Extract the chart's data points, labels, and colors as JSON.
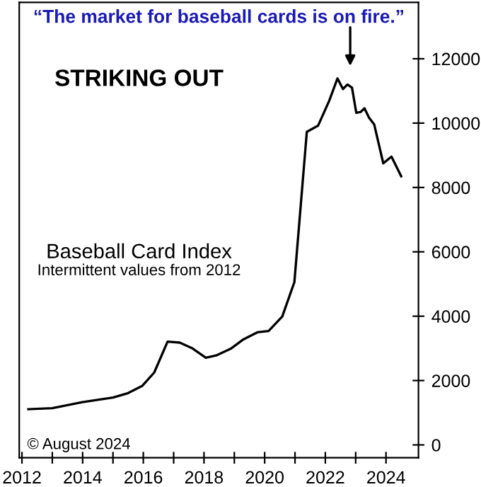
{
  "chart_data": {
    "type": "line",
    "title": "“The market for baseball cards is on fire.”",
    "subtitle": "STRIKING OUT",
    "annotations": [
      "Baseball Card Index",
      "Intermittent values from 2012",
      "© August 2024"
    ],
    "x": [
      2012.21,
      2013.0,
      2013.99,
      2015.0,
      2015.5,
      2015.96,
      2016.36,
      2016.8,
      2017.2,
      2017.6,
      2018.06,
      2018.4,
      2018.9,
      2019.3,
      2019.76,
      2020.13,
      2020.58,
      2020.98,
      2021.39,
      2021.76,
      2022.13,
      2022.4,
      2022.58,
      2022.73,
      2022.88,
      2023.02,
      2023.17,
      2023.29,
      2023.44,
      2023.61,
      2023.91,
      2024.18,
      2024.5
    ],
    "series": [
      {
        "color": "#000000",
        "values": [
          1110,
          1140,
          1330,
          1470,
          1610,
          1830,
          2250,
          3210,
          3180,
          3010,
          2710,
          2780,
          3000,
          3280,
          3500,
          3540,
          3990,
          5060,
          9730,
          9920,
          10700,
          11390,
          11060,
          11200,
          11100,
          10320,
          10350,
          10460,
          10170,
          9960,
          8750,
          8960,
          8350
        ]
      }
    ],
    "xlim": [
      2011.91,
      2025.07
    ],
    "ylim": [
      -400,
      13750
    ],
    "xticks": [
      2012,
      {
        "value": 2013,
        "label": null
      },
      2014,
      {
        "value": 2015,
        "label": null
      },
      2016,
      {
        "value": 2017,
        "label": null
      },
      2018,
      {
        "value": 2019,
        "label": null
      },
      2020,
      {
        "value": 2021,
        "label": null
      },
      2022,
      {
        "value": 2023,
        "label": null
      },
      2024
    ],
    "yticks": [
      0,
      2000,
      4000,
      6000,
      8000,
      10000,
      12000
    ],
    "grid": false,
    "legend": false,
    "marker": "none",
    "line_style": "solid"
  }
}
